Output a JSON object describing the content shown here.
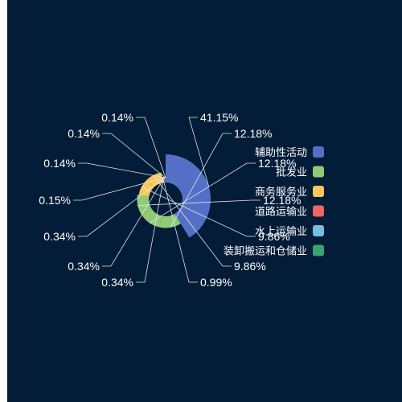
{
  "chart_data": {
    "type": "pie",
    "variant": "rose",
    "title": "",
    "legend": {
      "placement": "right",
      "entries": [
        "辅助性活动",
        "批发业",
        "商务服务业",
        "道路运输业",
        "水上运输业",
        "装卸搬运和仓储业"
      ]
    },
    "colors": [
      "#5470c6",
      "#91cc75",
      "#fac858",
      "#ee6666",
      "#73c0de",
      "#3ba272"
    ],
    "slices": [
      {
        "value": 41.15,
        "label": "41.15%",
        "color": "#5470c6"
      },
      {
        "value": 12.18,
        "label": "12.18%",
        "color": "#91cc75"
      },
      {
        "value": 12.18,
        "label": "12.18%",
        "color": "#91cc75"
      },
      {
        "value": 12.18,
        "label": "12.18%",
        "color": "#91cc75"
      },
      {
        "value": 9.86,
        "label": "9.86%",
        "color": "#fac858"
      },
      {
        "value": 9.86,
        "label": "9.86%",
        "color": "#fac858"
      },
      {
        "value": 0.99,
        "label": "0.99%",
        "color": "#fac858"
      },
      {
        "value": 0.34,
        "label": "0.34%",
        "color": "#ee6666"
      },
      {
        "value": 0.34,
        "label": "0.34%",
        "color": "#ee6666"
      },
      {
        "value": 0.34,
        "label": "0.34%",
        "color": "#ee6666"
      },
      {
        "value": 0.15,
        "label": "0.15%",
        "color": "#73c0de"
      },
      {
        "value": 0.14,
        "label": "0.14%",
        "color": "#3ba272"
      },
      {
        "value": 0.14,
        "label": "0.14%",
        "color": "#3ba272"
      },
      {
        "value": 0.14,
        "label": "0.14%",
        "color": "#3ba272"
      }
    ]
  }
}
